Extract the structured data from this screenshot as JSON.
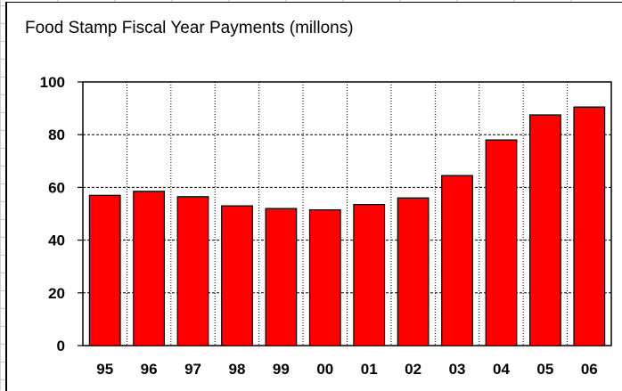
{
  "chart_data": {
    "type": "bar",
    "title": "Food Stamp Fiscal Year Payments (millons)",
    "xlabel": "",
    "ylabel": "",
    "categories": [
      "95",
      "96",
      "97",
      "98",
      "99",
      "00",
      "01",
      "02",
      "03",
      "04",
      "05",
      "06"
    ],
    "values": [
      57,
      58.5,
      56.5,
      53,
      52,
      51.5,
      53.5,
      56,
      64.5,
      78,
      87.5,
      90.5
    ],
    "ylim": [
      0,
      100
    ],
    "yticks": [
      "0",
      "20",
      "40",
      "60",
      "80",
      "100"
    ],
    "grid": true,
    "legend": "none",
    "colors": {
      "bar": "#ff0000",
      "bar_edge": "#000000",
      "grid": "#000000"
    }
  }
}
